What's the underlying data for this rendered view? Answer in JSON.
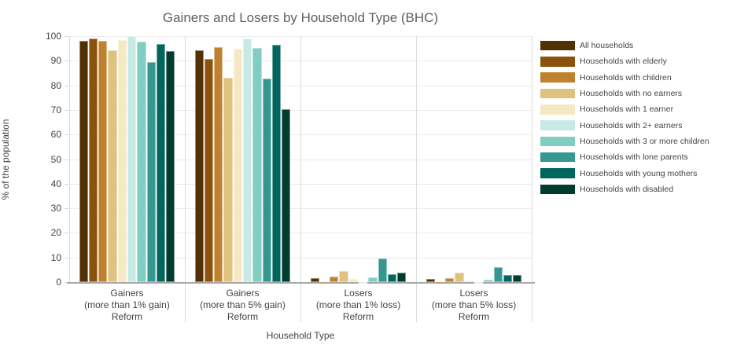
{
  "title": "Gainers and Losers by Household Type (BHC)",
  "chart_data": {
    "type": "bar",
    "title": "Gainers and Losers by Household Type (BHC)",
    "xlabel": "Household Type",
    "ylabel": "% of the population",
    "ylim": [
      0,
      100
    ],
    "y_ticks": [
      0,
      10,
      20,
      30,
      40,
      50,
      60,
      70,
      80,
      90,
      100
    ],
    "grid": true,
    "legend_position": "right",
    "categories": [
      [
        "Gainers",
        "(more than 1% gain)",
        "Reform"
      ],
      [
        "Gainers",
        "(more than 5% gain)",
        "Reform"
      ],
      [
        "Losers",
        "(more than 1% loss)",
        "Reform"
      ],
      [
        "Losers",
        "(more than 5% loss)",
        "Reform"
      ]
    ],
    "series": [
      {
        "name": "All households",
        "color": "#543005",
        "values": [
          98.1,
          94.1,
          1.7,
          1.3
        ]
      },
      {
        "name": "Households with elderly",
        "color": "#8c510a",
        "values": [
          99.0,
          90.6,
          0.1,
          0.1
        ]
      },
      {
        "name": "Households with children",
        "color": "#bf812d",
        "values": [
          98.0,
          95.6,
          2.1,
          1.5
        ]
      },
      {
        "name": "Households with no earners",
        "color": "#dfc27d",
        "values": [
          94.2,
          83.2,
          4.6,
          3.8
        ]
      },
      {
        "name": "Households with 1 earner",
        "color": "#f6e8c3",
        "values": [
          98.4,
          95.0,
          1.4,
          0.6
        ]
      },
      {
        "name": "Households with 2+ earners",
        "color": "#c7eae5",
        "values": [
          100.0,
          99.0,
          0.1,
          0.1
        ]
      },
      {
        "name": "Households with 3 or more children",
        "color": "#80cdc1",
        "values": [
          97.8,
          95.3,
          1.9,
          1.0
        ]
      },
      {
        "name": "Households with lone parents",
        "color": "#35978f",
        "values": [
          89.4,
          82.9,
          9.5,
          6.0
        ]
      },
      {
        "name": "Households with young mothers",
        "color": "#01665e",
        "values": [
          96.9,
          96.5,
          3.3,
          3.0
        ]
      },
      {
        "name": "Households with disabled",
        "color": "#003c30",
        "values": [
          93.9,
          70.2,
          3.9,
          2.8
        ]
      }
    ]
  },
  "ui_colors": {
    "background": "#ffffff",
    "gridline": "#ebebeb",
    "axis_line": "#d6d6d6",
    "zero_line": "#a7a7a7",
    "divider": "#dcdcdc",
    "tick_text": "#444444",
    "title_text": "#5f5f5f"
  }
}
